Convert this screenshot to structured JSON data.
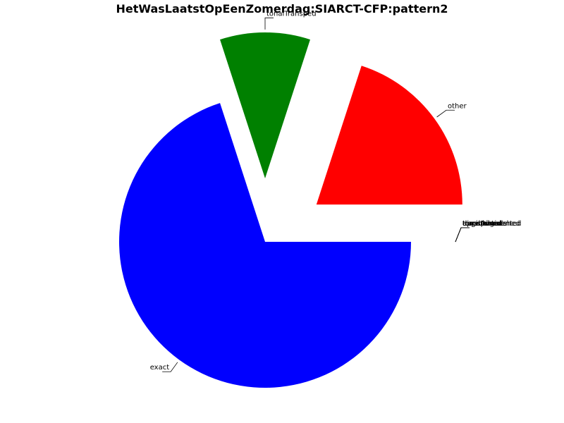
{
  "chart_data": {
    "type": "pie",
    "title": "HetWasLaatstOpEenZomerdag:SIARCT-CFP:pattern2",
    "slices": [
      {
        "label": "other",
        "value": 0.2,
        "color": "#ff0000"
      },
      {
        "label": "tonalTransped",
        "value": 0.1,
        "color": "#008000"
      },
      {
        "label": "exact",
        "value": 0.7,
        "color": "#0000ff"
      },
      {
        "label": "transposed",
        "value": 0.0,
        "color": "#00bfbf"
      },
      {
        "label": "augmented",
        "value": 0.0,
        "color": "#bf00bf"
      },
      {
        "label": "diminished",
        "value": 0.0,
        "color": "#bfbf00"
      },
      {
        "label": "tonalAugmented",
        "value": 0.0,
        "color": "#000000"
      },
      {
        "label": "tonalDiminished",
        "value": 0.0,
        "color": "#ff8000"
      },
      {
        "label": "approximate",
        "value": 0.0,
        "color": "#808080"
      }
    ],
    "start_angle_deg": 0,
    "direction": "counterclockwise",
    "exploded": true,
    "legend": "none"
  }
}
